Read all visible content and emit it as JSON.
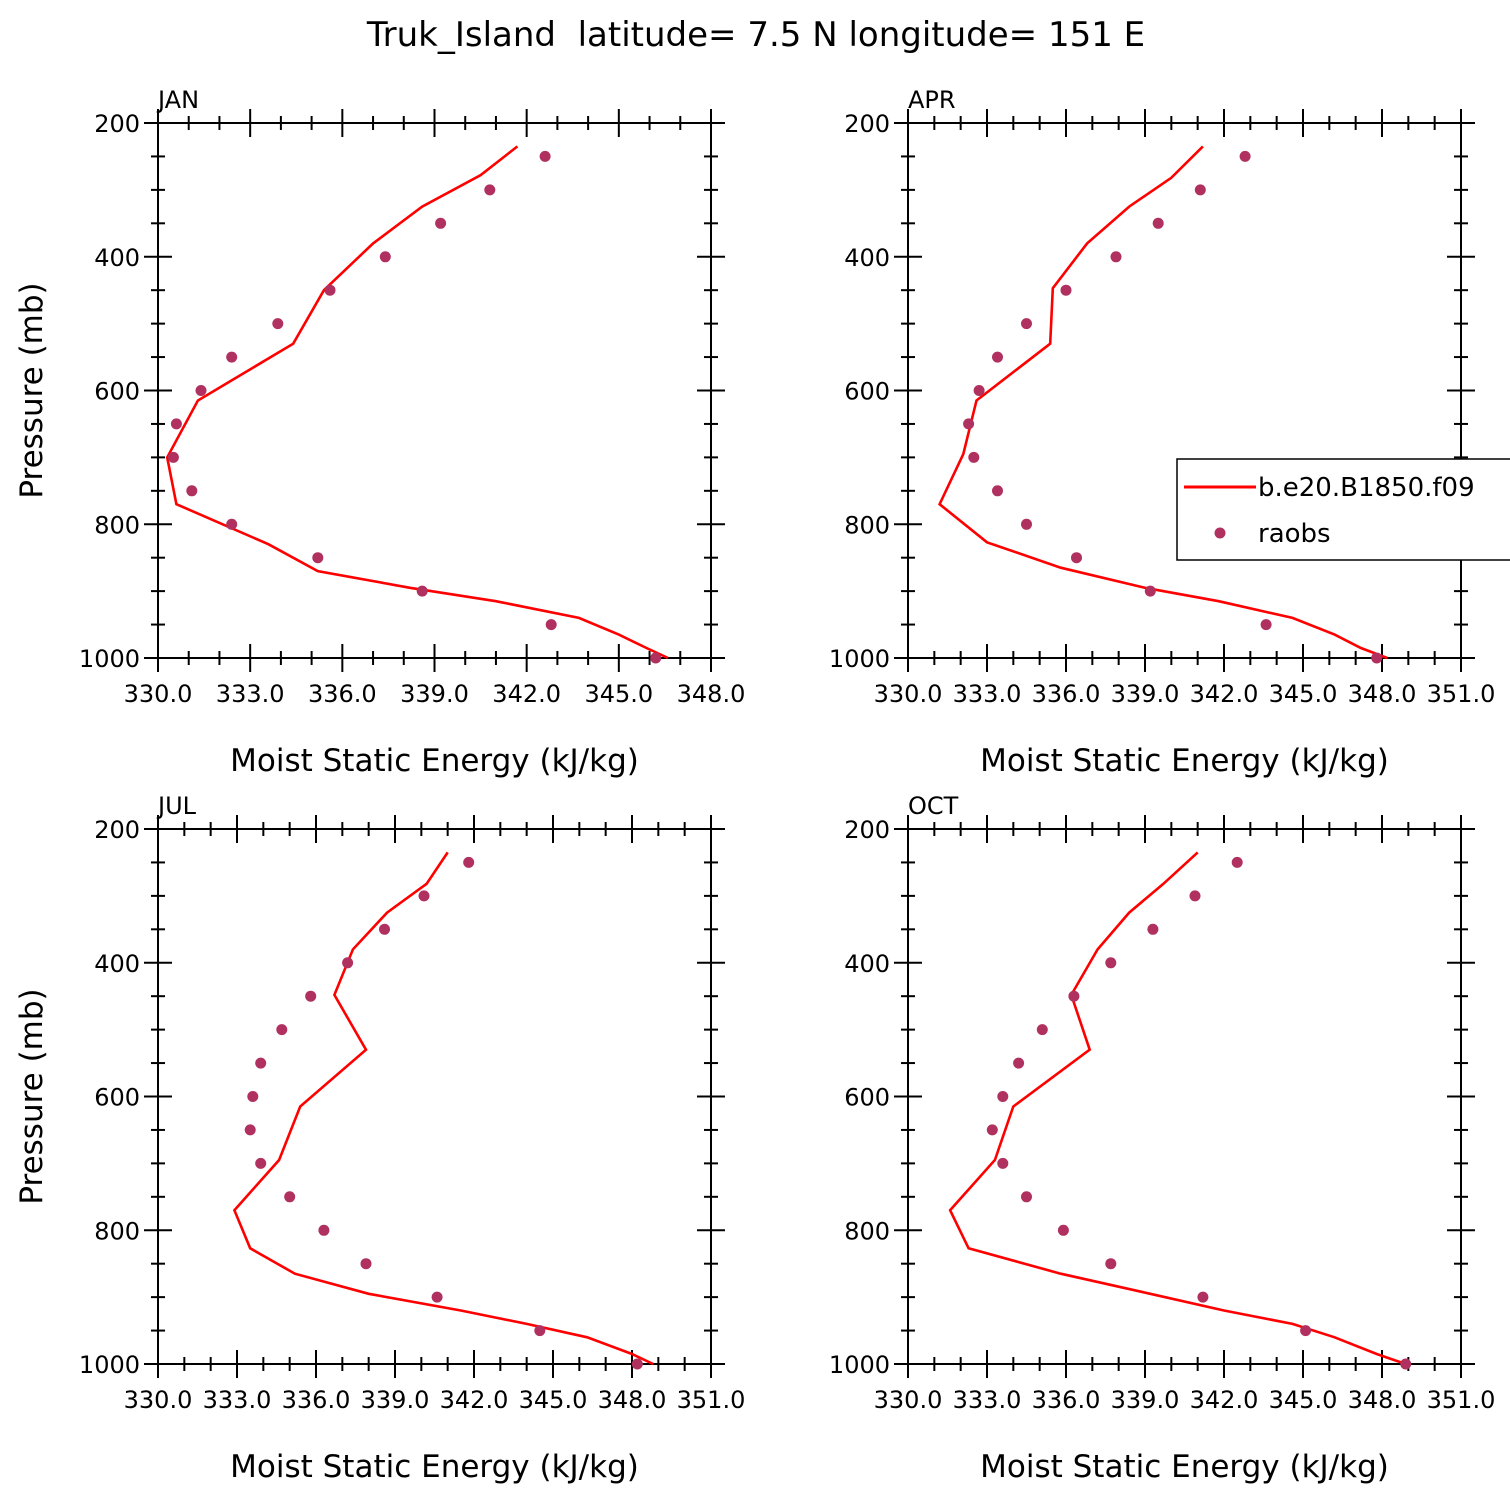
{
  "figure_title": "Truk_Island  latitude= 7.5 N longitude= 151 E",
  "legend": {
    "placement": "right-middle of APR panel",
    "model_label": "b.e20.B1850.f09",
    "obs_label": "raobs"
  },
  "colors": {
    "model_line": "#ff0000",
    "obs_marker": "#b03060",
    "axes": "#000000"
  },
  "chart_data": [
    {
      "type": "line",
      "panel": "JAN",
      "title": "JAN",
      "xlabel": "Moist Static Energy (kJ/kg)",
      "ylabel": "Pressure (mb)",
      "xlim": [
        330,
        348
      ],
      "ylim": [
        1000,
        200
      ],
      "x_ticks": [
        "330.0",
        "333.0",
        "336.0",
        "339.0",
        "342.0",
        "345.0",
        "348.0"
      ],
      "y_ticks": [
        "200",
        "400",
        "600",
        "800",
        "1000"
      ],
      "grid": false,
      "series": [
        {
          "name": "b.e20.B1850.f09",
          "style": "line",
          "points": [
            [
              346.6,
              1000
            ],
            [
              345.9,
              985
            ],
            [
              345.0,
              965
            ],
            [
              343.7,
              940
            ],
            [
              341.0,
              915
            ],
            [
              338.2,
              895
            ],
            [
              335.2,
              870
            ],
            [
              333.6,
              830
            ],
            [
              330.6,
              770
            ],
            [
              330.3,
              700
            ],
            [
              331.3,
              615
            ],
            [
              334.4,
              530
            ],
            [
              335.4,
              450
            ],
            [
              337.0,
              380
            ],
            [
              338.6,
              325
            ],
            [
              340.5,
              278
            ],
            [
              341.7,
              235
            ]
          ]
        },
        {
          "name": "raobs",
          "style": "markers",
          "points": [
            [
              346.2,
              1000
            ],
            [
              342.8,
              950
            ],
            [
              338.6,
              900
            ],
            [
              335.2,
              850
            ],
            [
              332.4,
              800
            ],
            [
              331.1,
              750
            ],
            [
              330.5,
              700
            ],
            [
              330.6,
              650
            ],
            [
              331.4,
              600
            ],
            [
              332.4,
              550
            ],
            [
              333.9,
              500
            ],
            [
              335.6,
              450
            ],
            [
              337.4,
              400
            ],
            [
              339.2,
              350
            ],
            [
              340.8,
              300
            ],
            [
              342.6,
              250
            ]
          ]
        }
      ]
    },
    {
      "type": "line",
      "panel": "APR",
      "title": "APR",
      "xlabel": "Moist Static Energy (kJ/kg)",
      "ylabel": "",
      "xlim": [
        330.0,
        351.0
      ],
      "ylim": [
        1000,
        200
      ],
      "x_ticks": [
        "330.0",
        "333.0",
        "336.0",
        "339.0",
        "342.0",
        "345.0",
        "348.0",
        "351.0"
      ],
      "y_ticks": [
        "200",
        "400",
        "600",
        "800",
        "1000"
      ],
      "grid": false,
      "series": [
        {
          "name": "b.e20.B1850.f09",
          "style": "line",
          "points": [
            [
              348.2,
              1000
            ],
            [
              347.2,
              985
            ],
            [
              346.2,
              965
            ],
            [
              344.6,
              940
            ],
            [
              341.8,
              915
            ],
            [
              339.0,
              895
            ],
            [
              335.8,
              865
            ],
            [
              333.0,
              827
            ],
            [
              331.2,
              770
            ],
            [
              332.1,
              695
            ],
            [
              332.6,
              615
            ],
            [
              335.4,
              530
            ],
            [
              335.5,
              447
            ],
            [
              336.8,
              380
            ],
            [
              338.4,
              325
            ],
            [
              340.0,
              282
            ],
            [
              341.2,
              235
            ]
          ]
        },
        {
          "name": "raobs",
          "style": "markers",
          "points": [
            [
              347.8,
              1000
            ],
            [
              343.6,
              950
            ],
            [
              339.2,
              900
            ],
            [
              336.4,
              850
            ],
            [
              334.5,
              800
            ],
            [
              333.4,
              750
            ],
            [
              332.5,
              700
            ],
            [
              332.3,
              650
            ],
            [
              332.7,
              600
            ],
            [
              333.4,
              550
            ],
            [
              334.5,
              500
            ],
            [
              336.0,
              450
            ],
            [
              337.9,
              400
            ],
            [
              339.5,
              350
            ],
            [
              341.1,
              300
            ],
            [
              342.8,
              250
            ]
          ]
        }
      ]
    },
    {
      "type": "line",
      "panel": "JUL",
      "title": "JUL",
      "xlabel": "Moist Static Energy (kJ/kg)",
      "ylabel": "Pressure (mb)",
      "xlim": [
        330.0,
        351.0
      ],
      "ylim": [
        1000,
        200
      ],
      "x_ticks": [
        "330.0",
        "333.0",
        "336.0",
        "339.0",
        "342.0",
        "345.0",
        "348.0",
        "351.0"
      ],
      "y_ticks": [
        "200",
        "400",
        "600",
        "800",
        "1000"
      ],
      "grid": false,
      "series": [
        {
          "name": "b.e20.B1850.f09",
          "style": "line",
          "points": [
            [
              348.8,
              1000
            ],
            [
              348.0,
              985
            ],
            [
              346.3,
              960
            ],
            [
              344.0,
              940
            ],
            [
              341.5,
              920
            ],
            [
              338.0,
              895
            ],
            [
              335.2,
              865
            ],
            [
              333.5,
              827
            ],
            [
              332.9,
              770
            ],
            [
              334.6,
              695
            ],
            [
              335.4,
              615
            ],
            [
              337.9,
              530
            ],
            [
              336.7,
              448
            ],
            [
              337.4,
              380
            ],
            [
              338.7,
              325
            ],
            [
              340.2,
              282
            ],
            [
              341.0,
              235
            ]
          ]
        },
        {
          "name": "raobs",
          "style": "markers",
          "points": [
            [
              348.2,
              1000
            ],
            [
              344.5,
              950
            ],
            [
              340.6,
              900
            ],
            [
              337.9,
              850
            ],
            [
              336.3,
              800
            ],
            [
              335.0,
              750
            ],
            [
              333.9,
              700
            ],
            [
              333.5,
              650
            ],
            [
              333.6,
              600
            ],
            [
              333.9,
              550
            ],
            [
              334.7,
              500
            ],
            [
              335.8,
              450
            ],
            [
              337.2,
              400
            ],
            [
              338.6,
              350
            ],
            [
              340.1,
              300
            ],
            [
              341.8,
              250
            ]
          ]
        }
      ]
    },
    {
      "type": "line",
      "panel": "OCT",
      "title": "OCT",
      "xlabel": "Moist Static Energy (kJ/kg)",
      "ylabel": "",
      "xlim": [
        330.0,
        351.0
      ],
      "ylim": [
        1000,
        200
      ],
      "x_ticks": [
        "330.0",
        "333.0",
        "336.0",
        "339.0",
        "342.0",
        "345.0",
        "348.0",
        "351.0"
      ],
      "y_ticks": [
        "200",
        "400",
        "600",
        "800",
        "1000"
      ],
      "grid": false,
      "series": [
        {
          "name": "b.e20.B1850.f09",
          "style": "line",
          "points": [
            [
              348.9,
              1000
            ],
            [
              347.8,
              985
            ],
            [
              346.2,
              960
            ],
            [
              344.6,
              940
            ],
            [
              342.0,
              920
            ],
            [
              339.2,
              895
            ],
            [
              335.8,
              865
            ],
            [
              332.3,
              827
            ],
            [
              331.6,
              770
            ],
            [
              333.3,
              695
            ],
            [
              334.0,
              615
            ],
            [
              336.9,
              530
            ],
            [
              336.2,
              448
            ],
            [
              337.2,
              380
            ],
            [
              338.4,
              325
            ],
            [
              339.7,
              282
            ],
            [
              341.0,
              235
            ]
          ]
        },
        {
          "name": "raobs",
          "style": "markers",
          "points": [
            [
              348.9,
              1000
            ],
            [
              345.1,
              950
            ],
            [
              341.2,
              900
            ],
            [
              337.7,
              850
            ],
            [
              335.9,
              800
            ],
            [
              334.5,
              750
            ],
            [
              333.6,
              700
            ],
            [
              333.2,
              650
            ],
            [
              333.6,
              600
            ],
            [
              334.2,
              550
            ],
            [
              335.1,
              500
            ],
            [
              336.3,
              450
            ],
            [
              337.7,
              400
            ],
            [
              339.3,
              350
            ],
            [
              340.9,
              300
            ],
            [
              342.5,
              250
            ]
          ]
        }
      ]
    }
  ]
}
